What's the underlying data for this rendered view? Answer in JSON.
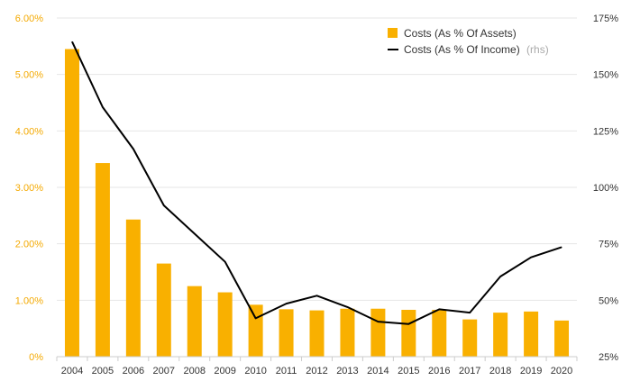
{
  "chart_data": {
    "type": "bar",
    "categories": [
      "2004",
      "2005",
      "2006",
      "2007",
      "2008",
      "2009",
      "2010",
      "2011",
      "2012",
      "2013",
      "2014",
      "2015",
      "2016",
      "2017",
      "2018",
      "2019",
      "2020"
    ],
    "series": [
      {
        "name": "Costs (As % Of Assets)",
        "type": "bar",
        "axis": "left",
        "color": "#f9b000",
        "values": [
          5.45,
          3.43,
          2.43,
          1.65,
          1.25,
          1.14,
          0.92,
          0.84,
          0.82,
          0.85,
          0.85,
          0.83,
          0.83,
          0.66,
          0.78,
          0.8,
          0.64
        ]
      },
      {
        "name": "Costs (As % Of Income)",
        "name_suffix": "(rhs)",
        "type": "line",
        "axis": "right",
        "color": "#000000",
        "values": [
          164.5,
          135.5,
          117.0,
          92.0,
          79.5,
          67.0,
          42.0,
          48.5,
          52.0,
          47.0,
          40.5,
          39.5,
          46.0,
          44.5,
          60.5,
          69.0,
          73.5
        ]
      }
    ],
    "y_left": {
      "range": [
        0,
        6
      ],
      "ticks": [
        0,
        1,
        2,
        3,
        4,
        5,
        6
      ],
      "tick_labels": [
        "0%",
        "1.00%",
        "2.00%",
        "3.00%",
        "4.00%",
        "5.00%",
        "6.00%"
      ]
    },
    "y_right": {
      "range": [
        25,
        175
      ],
      "ticks": [
        25,
        50,
        75,
        100,
        125,
        150,
        175
      ],
      "tick_labels": [
        "25%",
        "50%",
        "75%",
        "100%",
        "125%",
        "150%",
        "175%"
      ]
    },
    "grid": true,
    "legend_position": "top-right",
    "title": "",
    "xlabel": "",
    "ylabel": "",
    "colors": {
      "left_tick_text": "#f4a900",
      "grid": "#e6e6e6"
    }
  }
}
